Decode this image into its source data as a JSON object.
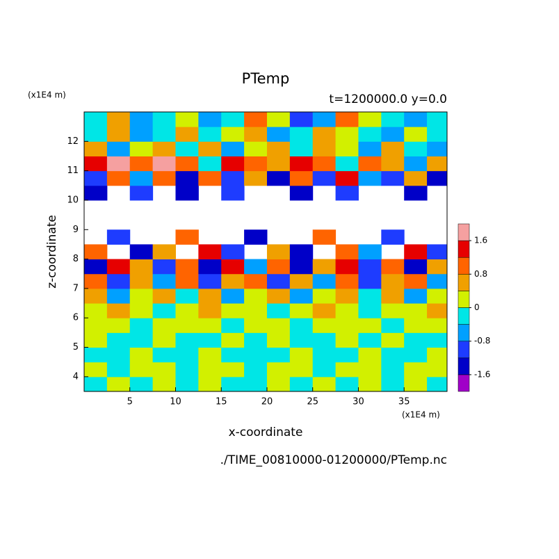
{
  "chart_data": {
    "type": "heatmap",
    "title": "PTemp",
    "subtitle": "t=1200000.0 y=0.0",
    "x_label": "x-coordinate",
    "y_label": "z-coordinate",
    "x_unit": "(x1E4 m)",
    "y_unit": "(x1E4 m)",
    "footer": "./TIME_00810000-01200000/PTemp.nc",
    "xlim": [
      0,
      39.7
    ],
    "ylim": [
      3.5,
      13
    ],
    "xticks": [
      5,
      10,
      15,
      20,
      25,
      30,
      35
    ],
    "yticks": [
      4,
      5,
      6,
      7,
      8,
      9,
      10,
      11,
      12
    ],
    "x": [
      1.25,
      3.75,
      6.25,
      8.75,
      11.25,
      13.75,
      16.25,
      18.75,
      21.25,
      23.75,
      26.25,
      28.75,
      31.25,
      33.75,
      36.25,
      38.75
    ],
    "y": [
      3.75,
      4.25,
      4.75,
      5.25,
      5.75,
      6.25,
      6.75,
      7.25,
      7.75,
      8.25,
      8.75,
      9.25,
      9.75,
      10.25,
      10.75,
      11.25,
      11.75,
      12.25,
      12.75
    ],
    "z": [
      [
        -0.2,
        0.2,
        -0.2,
        0.2,
        -0.2,
        0.2,
        -0.2,
        -0.2,
        0.2,
        -0.2,
        0.2,
        -0.2,
        0.2,
        -0.2,
        0.2,
        -0.2
      ],
      [
        0.2,
        -0.2,
        0.2,
        0.2,
        -0.2,
        0.2,
        0.2,
        -0.2,
        0.2,
        0.2,
        -0.2,
        0.2,
        0.2,
        -0.2,
        0.2,
        0.2
      ],
      [
        -0.2,
        -0.2,
        0.2,
        -0.2,
        -0.2,
        0.2,
        -0.2,
        -0.2,
        -0.2,
        0.2,
        -0.2,
        -0.2,
        0.2,
        -0.2,
        -0.2,
        0.2
      ],
      [
        0.2,
        -0.2,
        -0.2,
        0.2,
        -0.2,
        -0.2,
        0.2,
        -0.2,
        0.2,
        -0.2,
        -0.2,
        0.2,
        -0.2,
        0.2,
        -0.2,
        -0.2
      ],
      [
        0.2,
        0.2,
        -0.2,
        0.2,
        0.2,
        0.2,
        -0.2,
        0.2,
        0.2,
        -0.2,
        0.2,
        0.2,
        0.2,
        -0.2,
        0.2,
        0.2
      ],
      [
        0.2,
        0.5,
        0.2,
        -0.2,
        0.2,
        0.5,
        0.2,
        0.2,
        -0.2,
        0.2,
        0.5,
        0.2,
        -0.2,
        0.2,
        0.2,
        0.5
      ],
      [
        0.5,
        -0.5,
        0.2,
        0.5,
        -0.2,
        0.5,
        -0.5,
        0.2,
        0.5,
        -0.5,
        0.2,
        0.5,
        -0.2,
        0.5,
        -0.5,
        0.2
      ],
      [
        1.0,
        -1.0,
        0.5,
        -0.5,
        1.0,
        -1.0,
        0.5,
        1.0,
        -1.0,
        0.5,
        -0.5,
        1.0,
        -1.0,
        0.5,
        1.0,
        -0.5
      ],
      [
        -1.4,
        1.4,
        0.6,
        -1.0,
        1.0,
        -1.4,
        1.4,
        -0.6,
        1.0,
        -1.4,
        0.6,
        1.4,
        -1.0,
        1.0,
        -1.4,
        0.6
      ],
      [
        1.0,
        null,
        -1.4,
        0.6,
        null,
        1.4,
        -1.0,
        null,
        0.6,
        -1.4,
        null,
        1.0,
        -0.6,
        null,
        1.4,
        -1.0
      ],
      [
        null,
        -1.0,
        null,
        null,
        1.0,
        null,
        null,
        -1.4,
        null,
        null,
        1.0,
        null,
        null,
        -1.0,
        null,
        null
      ],
      [
        null,
        null,
        null,
        null,
        null,
        null,
        null,
        null,
        null,
        null,
        null,
        null,
        null,
        null,
        null,
        null
      ],
      [
        null,
        null,
        null,
        null,
        null,
        null,
        null,
        null,
        null,
        null,
        null,
        null,
        null,
        null,
        null,
        null
      ],
      [
        -1.4,
        null,
        -1.0,
        null,
        -1.4,
        null,
        -1.0,
        null,
        null,
        -1.4,
        null,
        -1.0,
        null,
        null,
        -1.4,
        null
      ],
      [
        -1.0,
        1.0,
        -0.6,
        1.0,
        -1.4,
        1.0,
        -1.0,
        0.6,
        -1.4,
        1.0,
        -1.0,
        1.4,
        -0.6,
        -1.0,
        0.6,
        -1.4
      ],
      [
        1.4,
        1.8,
        1.0,
        1.8,
        1.0,
        -0.2,
        1.4,
        1.0,
        0.6,
        1.4,
        1.0,
        -0.2,
        1.0,
        0.6,
        -0.6,
        0.6
      ],
      [
        0.6,
        -0.6,
        0.2,
        0.6,
        -0.2,
        0.6,
        -0.6,
        0.2,
        0.6,
        -0.2,
        0.6,
        0.2,
        -0.6,
        0.6,
        -0.2,
        -0.6
      ],
      [
        -0.2,
        0.5,
        -0.6,
        -0.2,
        0.5,
        -0.2,
        0.2,
        0.5,
        -0.6,
        -0.2,
        0.5,
        0.2,
        -0.2,
        -0.6,
        0.2,
        -0.2
      ],
      [
        -0.2,
        0.6,
        -0.6,
        -0.2,
        0.2,
        -0.6,
        -0.2,
        1.0,
        0.2,
        -1.0,
        -0.6,
        1.0,
        0.2,
        -0.2,
        -0.6,
        -0.2
      ]
    ],
    "colorbar": {
      "levels": [
        -1.6,
        -1.2,
        -0.8,
        -0.4,
        0,
        0.4,
        0.8,
        1.2,
        1.6
      ],
      "colors": [
        "#a000c8",
        "#0000c8",
        "#1e3cff",
        "#00a0ff",
        "#00e6e6",
        "#d2f000",
        "#f0a000",
        "#ff6400",
        "#e60000",
        "#f5a0a0"
      ],
      "ticks": [
        -1.6,
        -0.8,
        0,
        0.8,
        1.6
      ]
    }
  }
}
